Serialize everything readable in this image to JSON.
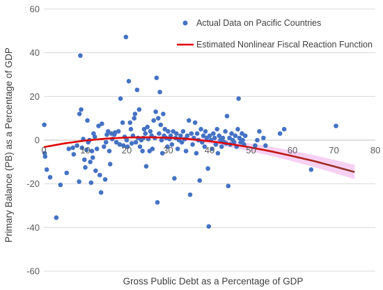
{
  "chart_data": {
    "type": "scatter",
    "title": "",
    "xlabel": "Gross Public Debt as a Percentage of GDP",
    "ylabel": "Primary Balance (PB) as a Percentage of GDP",
    "xlim": [
      0,
      80
    ],
    "ylim": [
      -60,
      60
    ],
    "x_ticks": [
      0,
      10,
      20,
      30,
      40,
      50,
      60,
      70,
      80
    ],
    "y_ticks": [
      -60,
      -40,
      -20,
      0,
      20,
      40,
      60
    ],
    "x_tick_labels": [
      "0",
      "10",
      "20",
      "30",
      "40",
      "50",
      "60",
      "70",
      "80"
    ],
    "y_tick_labels": [
      "-60",
      "-40",
      "-20",
      "0",
      "20",
      "40",
      "60"
    ],
    "grid": "horizontal",
    "legend_position": "top-right",
    "colors": {
      "points": "#4472C4",
      "curve": "#E00000",
      "curve_tail": "#8B3A2A",
      "band": "#F4C2F0",
      "grid": "#D9D9D9"
    },
    "series": [
      {
        "name": "Actual Data on Pacific Countries",
        "kind": "scatter",
        "points": [
          [
            0.1,
            7
          ],
          [
            0.2,
            -6
          ],
          [
            0.3,
            -7.5
          ],
          [
            0.7,
            -13.5
          ],
          [
            1.5,
            -17
          ],
          [
            3,
            -35.5
          ],
          [
            4,
            -20.5
          ],
          [
            5.5,
            -15
          ],
          [
            6,
            -4
          ],
          [
            7,
            -3.5
          ],
          [
            7.2,
            -6.5
          ],
          [
            8,
            -2.5
          ],
          [
            8.5,
            -19
          ],
          [
            8.6,
            12
          ],
          [
            8.8,
            38.7
          ],
          [
            9,
            14
          ],
          [
            9.2,
            -3.5
          ],
          [
            9.5,
            0.5
          ],
          [
            9.8,
            -9
          ],
          [
            10,
            -12.5
          ],
          [
            10.3,
            -4.5
          ],
          [
            10.5,
            9
          ],
          [
            10.7,
            -1
          ],
          [
            11,
            0
          ],
          [
            11.2,
            -10
          ],
          [
            11.4,
            -19.5
          ],
          [
            11.6,
            -5
          ],
          [
            11.8,
            -8
          ],
          [
            12,
            3
          ],
          [
            12.3,
            1.5
          ],
          [
            12.5,
            -14
          ],
          [
            12.8,
            -4
          ],
          [
            13.2,
            6.5
          ],
          [
            13.5,
            -16
          ],
          [
            13.8,
            -24
          ],
          [
            14,
            7.5
          ],
          [
            14.5,
            -3
          ],
          [
            14.8,
            -18
          ],
          [
            15,
            -1
          ],
          [
            15.2,
            2.5
          ],
          [
            15.5,
            4
          ],
          [
            15.8,
            -5
          ],
          [
            16,
            -11
          ],
          [
            16.3,
            3
          ],
          [
            16.5,
            0.5
          ],
          [
            17,
            2.5
          ],
          [
            17.2,
            3.5
          ],
          [
            17.5,
            -1
          ],
          [
            18,
            4
          ],
          [
            18.3,
            -2
          ],
          [
            18.5,
            19
          ],
          [
            19,
            8
          ],
          [
            19.2,
            -2.5
          ],
          [
            19.5,
            1.5
          ],
          [
            19.8,
            47.2
          ],
          [
            20,
            0
          ],
          [
            20.2,
            -3
          ],
          [
            20.5,
            27
          ],
          [
            20.8,
            8
          ],
          [
            21,
            5
          ],
          [
            21.2,
            -1.5
          ],
          [
            21.5,
            2
          ],
          [
            21.8,
            10
          ],
          [
            22,
            12
          ],
          [
            22.2,
            -1
          ],
          [
            22.5,
            23
          ],
          [
            22.7,
            1
          ],
          [
            23,
            14
          ],
          [
            23.2,
            -3
          ],
          [
            23.5,
            0
          ],
          [
            23.8,
            -5
          ],
          [
            24,
            1
          ],
          [
            24.2,
            5
          ],
          [
            24.5,
            3
          ],
          [
            24.7,
            -12
          ],
          [
            25,
            6
          ],
          [
            25.2,
            0.5
          ],
          [
            25.5,
            -5
          ],
          [
            25.7,
            4
          ],
          [
            26,
            2
          ],
          [
            26.2,
            -4
          ],
          [
            26.5,
            9
          ],
          [
            26.8,
            1
          ],
          [
            27,
            13
          ],
          [
            27.2,
            28.5
          ],
          [
            27.4,
            -28.5
          ],
          [
            27.6,
            10
          ],
          [
            27.8,
            3
          ],
          [
            28,
            22
          ],
          [
            28.2,
            7
          ],
          [
            28.4,
            0
          ],
          [
            28.6,
            -6
          ],
          [
            28.8,
            12
          ],
          [
            29,
            2
          ],
          [
            29.2,
            5
          ],
          [
            29.5,
            1
          ],
          [
            29.8,
            -3
          ],
          [
            30,
            4
          ],
          [
            30.3,
            0.5
          ],
          [
            30.6,
            2
          ],
          [
            30.9,
            -2
          ],
          [
            31.2,
            4
          ],
          [
            31.5,
            -17.5
          ],
          [
            31.8,
            1
          ],
          [
            32,
            3
          ],
          [
            32.3,
            -4
          ],
          [
            32.6,
            0
          ],
          [
            33,
            2
          ],
          [
            33.3,
            -1
          ],
          [
            33.6,
            4
          ],
          [
            34,
            0.5
          ],
          [
            34.3,
            -5
          ],
          [
            34.6,
            2
          ],
          [
            35,
            9
          ],
          [
            35.3,
            -25
          ],
          [
            35.6,
            3
          ],
          [
            35.9,
            -2
          ],
          [
            36.2,
            1
          ],
          [
            36.5,
            8
          ],
          [
            36.8,
            -6
          ],
          [
            37,
            3
          ],
          [
            37.3,
            0
          ],
          [
            37.6,
            -18.5
          ],
          [
            37.9,
            5
          ],
          [
            38.2,
            -1
          ],
          [
            38.5,
            2
          ],
          [
            38.8,
            -3
          ],
          [
            39,
            4
          ],
          [
            39.3,
            1
          ],
          [
            39.6,
            -13
          ],
          [
            39.8,
            -39.5
          ],
          [
            40,
            2
          ],
          [
            40.3,
            0
          ],
          [
            40.6,
            -4
          ],
          [
            40.9,
            3
          ],
          [
            41.2,
            1
          ],
          [
            41.5,
            -2
          ],
          [
            41.8,
            5
          ],
          [
            42,
            -6
          ],
          [
            42.3,
            2
          ],
          [
            42.6,
            0
          ],
          [
            42.9,
            -3
          ],
          [
            43.2,
            1
          ],
          [
            43.5,
            -1
          ],
          [
            43.8,
            4
          ],
          [
            44,
            -1.5
          ],
          [
            44.2,
            11
          ],
          [
            44.5,
            -21
          ],
          [
            44.8,
            1
          ],
          [
            45,
            -2
          ],
          [
            45.3,
            3
          ],
          [
            45.6,
            0
          ],
          [
            45.9,
            -1
          ],
          [
            46.2,
            2
          ],
          [
            46.5,
            -3
          ],
          [
            46.8,
            5
          ],
          [
            47,
            19
          ],
          [
            47.2,
            1
          ],
          [
            47.5,
            -1
          ],
          [
            47.8,
            3
          ],
          [
            48,
            0
          ],
          [
            48.3,
            -2
          ],
          [
            48.6,
            2
          ],
          [
            51,
            -2.5
          ],
          [
            51.5,
            0
          ],
          [
            52,
            4
          ],
          [
            53,
            1
          ],
          [
            53.5,
            -2.5
          ],
          [
            57,
            3
          ],
          [
            58,
            5
          ],
          [
            64.5,
            -13.5
          ],
          [
            70.5,
            6.5
          ]
        ]
      },
      {
        "name": "Estimated Nonlinear Fiscal Reaction Function",
        "kind": "line",
        "points": [
          [
            0,
            -3.2
          ],
          [
            5,
            -1.5
          ],
          [
            10,
            -0.2
          ],
          [
            15,
            0.7
          ],
          [
            20,
            1.2
          ],
          [
            25,
            1.3
          ],
          [
            30,
            1.1
          ],
          [
            35,
            0.5
          ],
          [
            40,
            -0.5
          ],
          [
            45,
            -1.8
          ],
          [
            50,
            -3.4
          ],
          [
            55,
            -5.2
          ],
          [
            60,
            -7.3
          ],
          [
            65,
            -9.5
          ],
          [
            70,
            -12
          ],
          [
            75,
            -14.6
          ]
        ]
      }
    ]
  }
}
